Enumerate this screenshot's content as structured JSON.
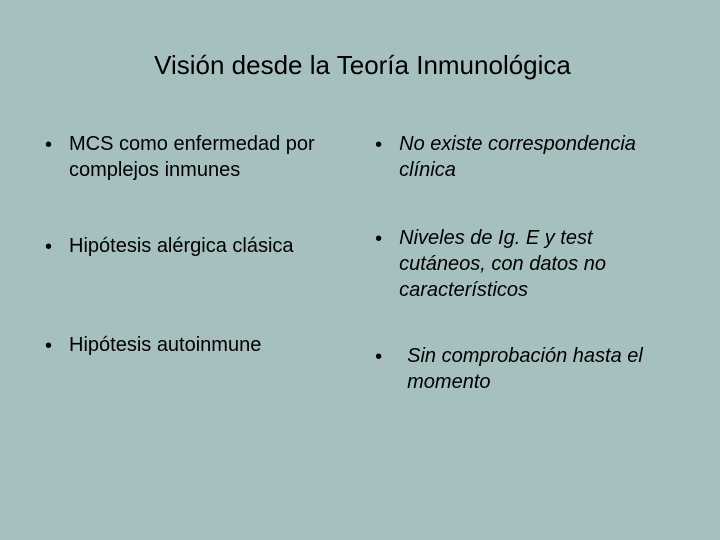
{
  "background_color": "#a6bfbf",
  "text_color": "#000000",
  "font_family": "Arial",
  "title": "Visión desde la Teoría Inmunológica",
  "title_fontsize": 26,
  "body_fontsize": 20,
  "left_column": {
    "items": [
      {
        "text": "MCS como enfermedad por complejos inmunes",
        "italic": false
      },
      {
        "text": "Hipótesis alérgica clásica",
        "italic": false
      },
      {
        "text": "Hipótesis autoinmune",
        "italic": false
      }
    ]
  },
  "right_column": {
    "items": [
      {
        "text": "No existe correspondencia clínica",
        "italic": true
      },
      {
        "text": "Niveles de Ig. E y test cutáneos, con datos  no característicos",
        "italic": true
      },
      {
        "text": "Sin comprobación hasta el momento",
        "italic": true
      }
    ]
  },
  "bullet_char": "•"
}
